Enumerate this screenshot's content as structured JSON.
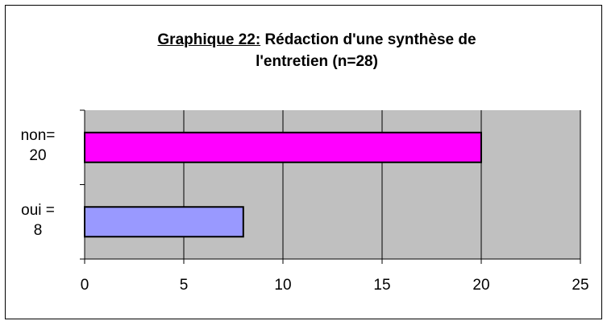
{
  "chart_data": {
    "type": "barh",
    "title_label": "Graphique 22:",
    "title": "Rédaction d'une synthèse de l'entretien (n=28)",
    "categories": [
      "non=\n20",
      "oui =\n8"
    ],
    "values": [
      20,
      8
    ],
    "colors": [
      "#ff00ff",
      "#9999ff"
    ],
    "xlim": [
      0,
      25
    ],
    "xticks": [
      0,
      5,
      10,
      15,
      20,
      25
    ],
    "grid": true
  }
}
